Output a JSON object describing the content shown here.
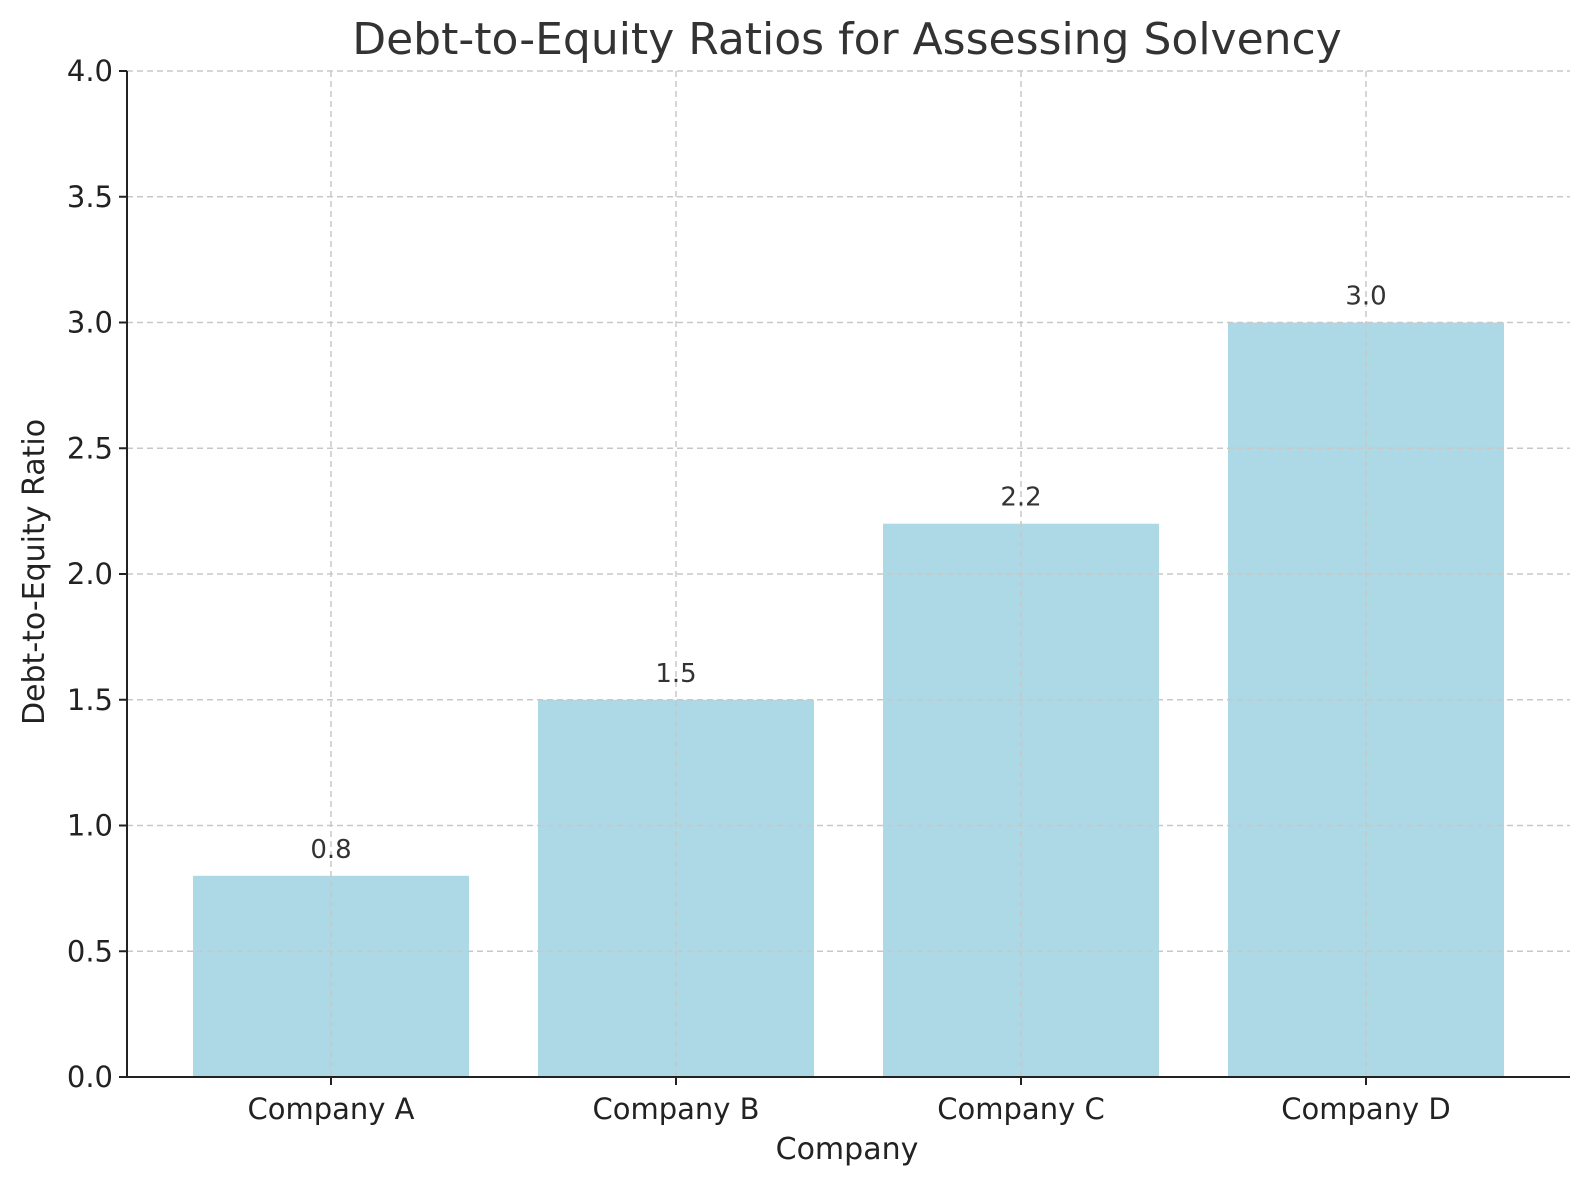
{
  "chart_data": {
    "type": "bar",
    "title": "Debt-to-Equity Ratios for Assessing Solvency",
    "xlabel": "Company",
    "ylabel": "Debt-to-Equity Ratio",
    "categories": [
      "Company A",
      "Company B",
      "Company C",
      "Company D"
    ],
    "values": [
      0.8,
      1.5,
      2.2,
      3.0
    ],
    "value_labels": [
      "0.8",
      "1.5",
      "2.2",
      "3.0"
    ],
    "ylim": [
      0,
      4.0
    ],
    "yticks": [
      0.0,
      0.5,
      1.0,
      1.5,
      2.0,
      2.5,
      3.0,
      3.5,
      4.0
    ],
    "ytick_labels": [
      "0.0",
      "0.5",
      "1.0",
      "1.5",
      "2.0",
      "2.5",
      "3.0",
      "3.5",
      "4.0"
    ],
    "grid": true,
    "bar_color": "#add8e6",
    "grid_color": "#c8c8c8",
    "axis_color": "#222222"
  }
}
